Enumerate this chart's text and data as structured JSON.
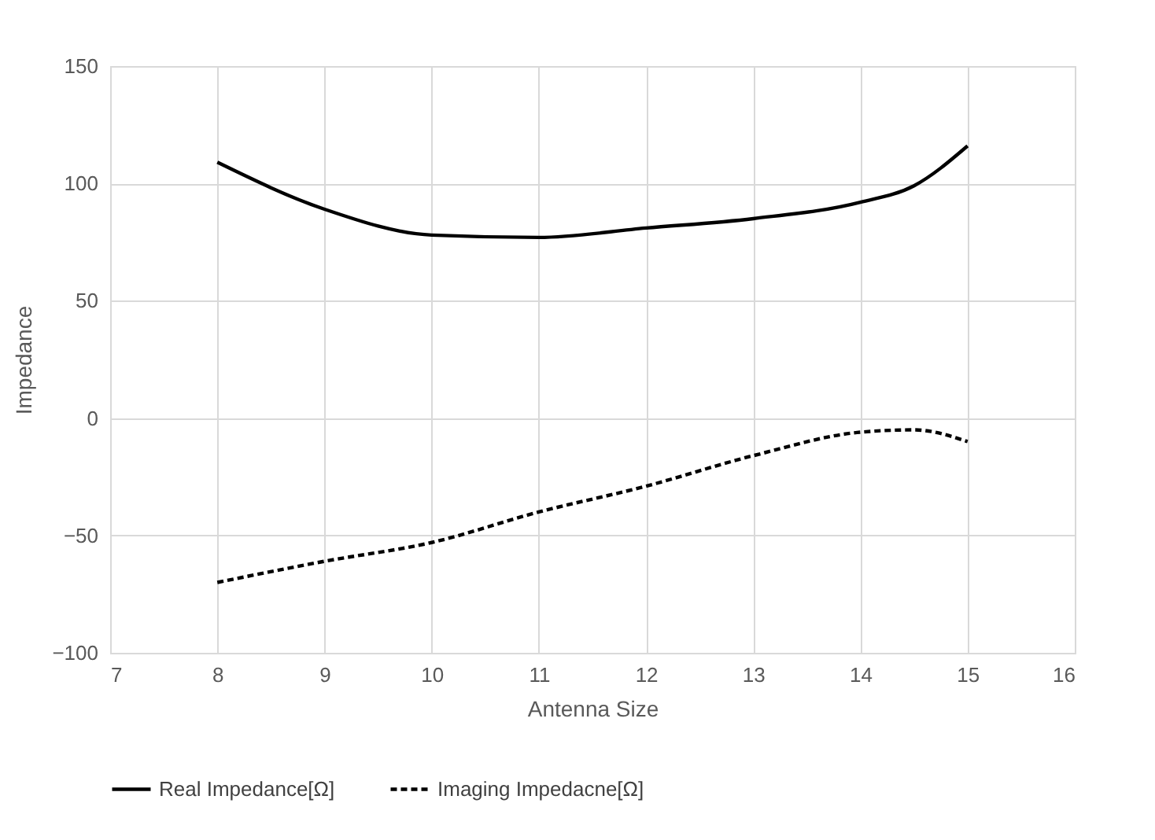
{
  "chart_data": {
    "type": "line",
    "xlabel": "Antenna Size",
    "ylabel": "Impedance",
    "x": [
      8,
      9,
      10,
      11,
      12,
      13,
      14,
      14.5,
      15
    ],
    "series": [
      {
        "name": "Real Impedance[Ω]",
        "color": "#000000",
        "line_style": "solid",
        "values": [
          109,
          89,
          78,
          77,
          81,
          85,
          92,
          99,
          116
        ]
      },
      {
        "name": "Imaging Impedacne[Ω]",
        "color": "#000000",
        "line_style": "dashed",
        "values": [
          -70,
          -61,
          -53,
          -40,
          -29,
          -16,
          -6,
          -5,
          -10
        ]
      }
    ],
    "xlim": [
      7,
      16
    ],
    "xticks": [
      7,
      8,
      9,
      10,
      11,
      12,
      13,
      14,
      15,
      16
    ],
    "ylim": [
      -100,
      150
    ],
    "yticks": [
      -100,
      -50,
      0,
      50,
      100,
      150
    ],
    "grid": true,
    "legend": "bottom",
    "marker": "none"
  }
}
